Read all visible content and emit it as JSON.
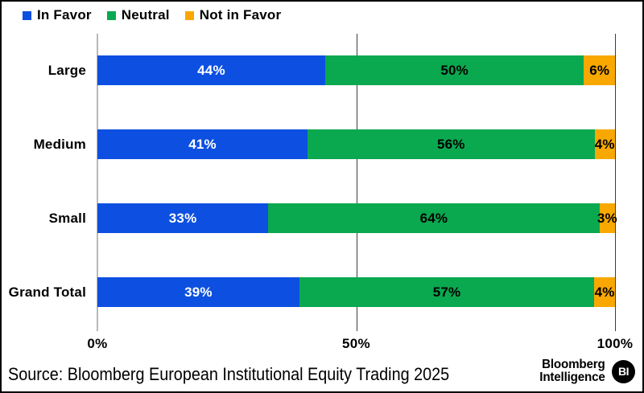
{
  "chart_data": {
    "type": "bar",
    "orientation": "horizontal",
    "stacked": true,
    "categories": [
      "Large",
      "Medium",
      "Small",
      "Grand Total"
    ],
    "series": [
      {
        "name": "In Favor",
        "color": "#0d50e1",
        "label_color": "#ffffff",
        "values": [
          44,
          41,
          33,
          39
        ]
      },
      {
        "name": "Neutral",
        "color": "#0aa84f",
        "label_color": "#000000",
        "values": [
          50,
          56,
          64,
          57
        ]
      },
      {
        "name": "Not in Favor",
        "color": "#f8a800",
        "label_color": "#000000",
        "values": [
          6,
          4,
          3,
          4
        ]
      }
    ],
    "value_suffix": "%",
    "x_ticks": [
      {
        "label": "0%",
        "value": 0
      },
      {
        "label": "50%",
        "value": 50
      },
      {
        "label": "100%",
        "value": 100
      }
    ],
    "xlim": [
      0,
      100
    ],
    "grid": "vertical-at-ticks",
    "legend_position": "top-left"
  },
  "footer": {
    "source": "Source: Bloomberg European Institutional Equity Trading 2025",
    "logo_line1": "Bloomberg",
    "logo_line2": "Intelligence",
    "logo_badge": "BI"
  }
}
